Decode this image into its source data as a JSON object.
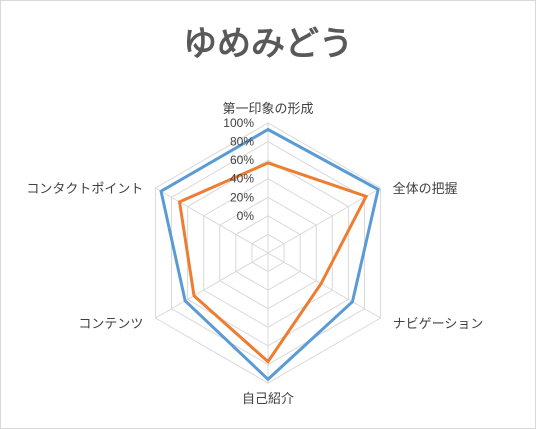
{
  "chart_data": {
    "type": "radar",
    "title": "ゆめみどう",
    "categories": [
      "第一印象の形成",
      "全体の把握",
      "ナビゲーション",
      "自己紹介",
      "コンテンツ",
      "コンタクトポイント"
    ],
    "r_ticks": [
      "0%",
      "20%",
      "40%",
      "60%",
      "80%",
      "100%"
    ],
    "r_range": [
      -0.4,
      1.0
    ],
    "grid": true,
    "legend": "none",
    "series": [
      {
        "values": [
          0.93,
          0.97,
          0.65,
          0.96,
          0.63,
          0.93
        ],
        "color": "#5b9bd5"
      },
      {
        "values": [
          0.57,
          0.82,
          0.26,
          0.77,
          0.52,
          0.7
        ],
        "color": "#ed7d31"
      }
    ]
  }
}
